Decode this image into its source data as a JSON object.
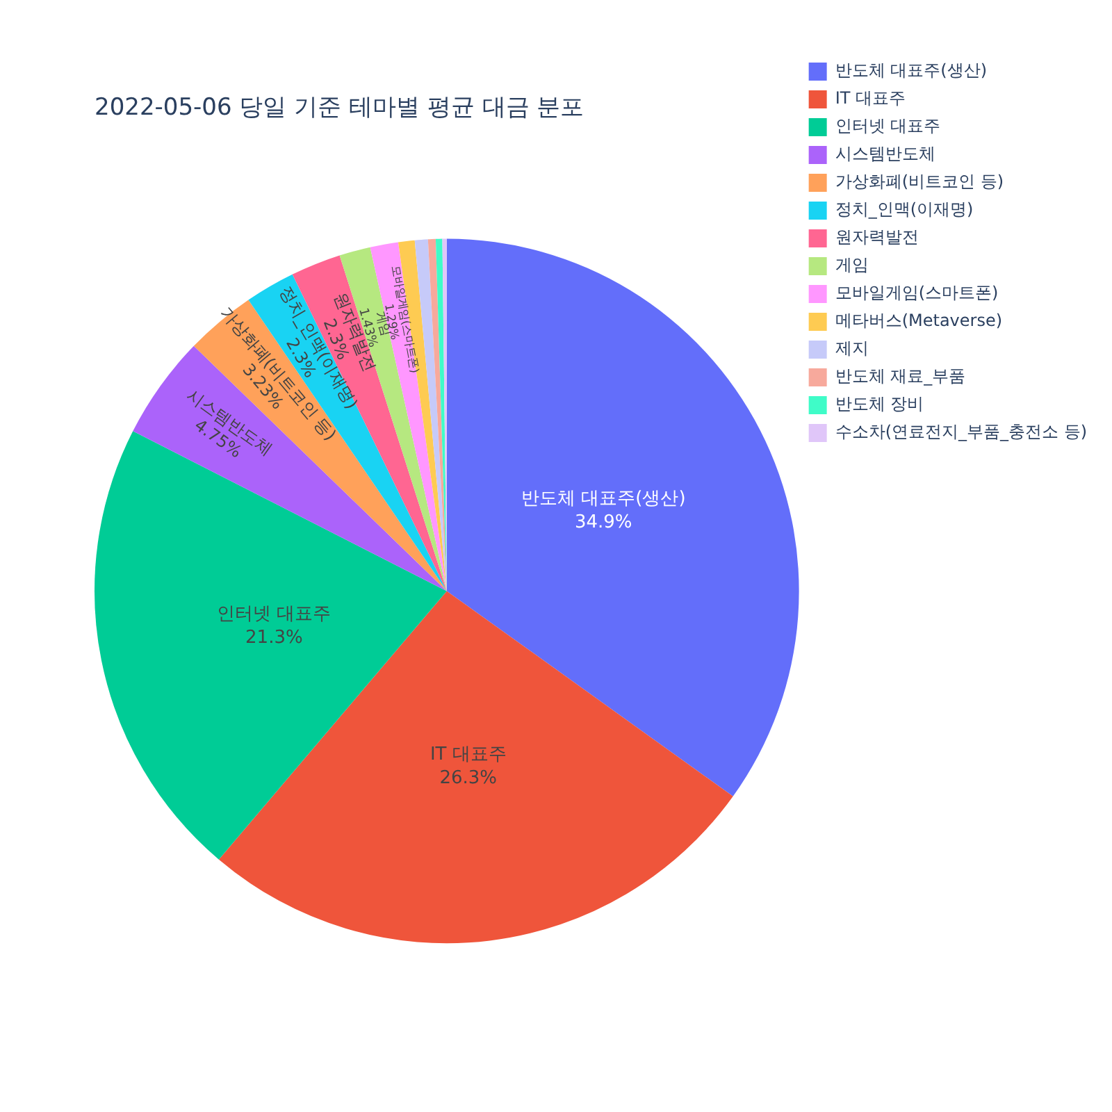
{
  "chart_data": {
    "type": "pie",
    "title": "2022-05-06 당일 기준 테마별 평균 대금 분포",
    "categories": [
      "반도체 대표주(생산)",
      "IT 대표주",
      "인터넷 대표주",
      "시스템반도체",
      "가상화폐(비트코인 등)",
      "정치_인맥(이재명)",
      "원자력발전",
      "게임",
      "모바일게임(스마트폰)",
      "메타버스(Metaverse)",
      "제지",
      "반도체 재료_부품",
      "반도체 장비",
      "수소차(연료전지_부품_충전소 등)"
    ],
    "values": [
      34.9,
      26.3,
      21.3,
      4.75,
      3.23,
      2.3,
      2.3,
      1.43,
      1.29,
      0.75,
      0.6,
      0.35,
      0.3,
      0.2
    ],
    "colors": [
      "#636efa",
      "#ef553b",
      "#00cc96",
      "#ab63fa",
      "#ffa15a",
      "#19d3f3",
      "#ff6692",
      "#b6e880",
      "#ff97ff",
      "#fecb52",
      "#c6caf9",
      "#f7a99c",
      "#3ffcc8",
      "#e0c6f9"
    ],
    "value_labels": [
      "34.9%",
      "26.3%",
      "21.3%",
      "4.75%",
      "3.23%",
      "2.3%",
      "2.3%",
      "1.43%",
      "1.29%",
      null,
      null,
      null,
      null,
      null
    ],
    "legend": "top right"
  }
}
